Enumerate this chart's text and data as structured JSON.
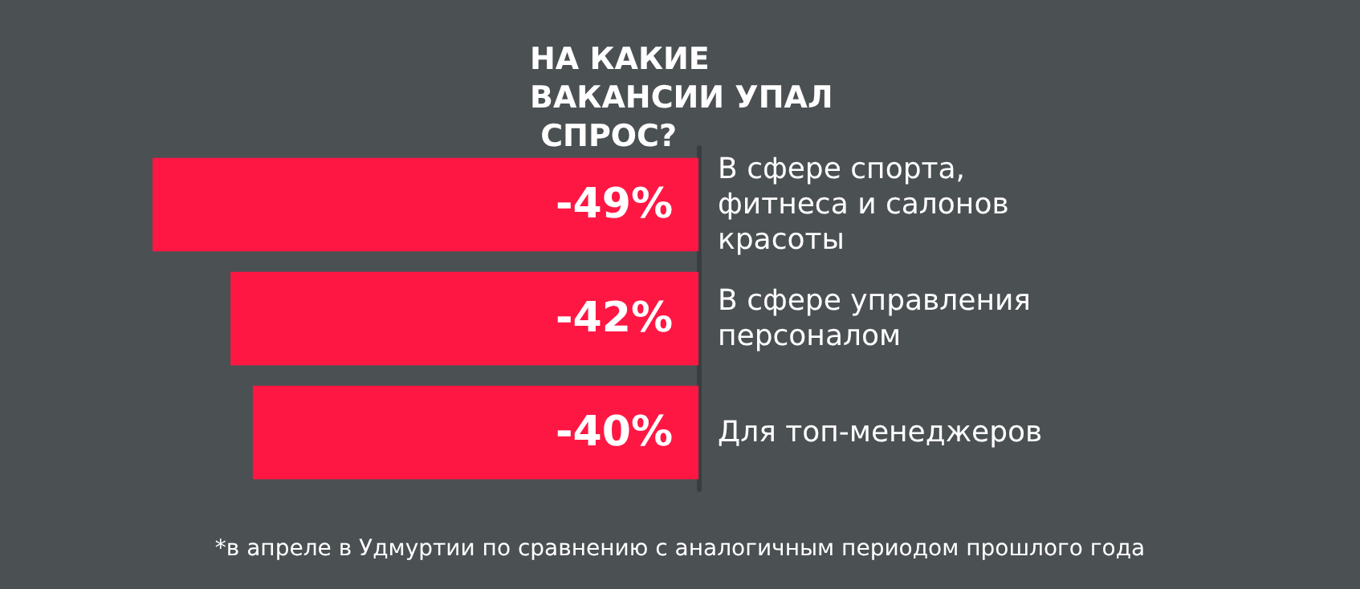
{
  "chart_data": {
    "type": "bar",
    "orientation": "horizontal",
    "title": "НА КАКИЕ ВАКАНСИИ УПАЛ СПРОС?",
    "categories": [
      "В сфере спорта, фитнеса и салонов красоты",
      "В сфере управления персоналом",
      "Для топ-менеджеров"
    ],
    "values": [
      -49,
      -42,
      -40
    ],
    "value_labels": [
      "-49%",
      "-42%",
      "-40%"
    ],
    "color": "#ff1744",
    "grid": false,
    "annotations": [
      "*в апреле в Удмуртии по сравнению с аналогичным периодом прошлого года"
    ]
  }
}
